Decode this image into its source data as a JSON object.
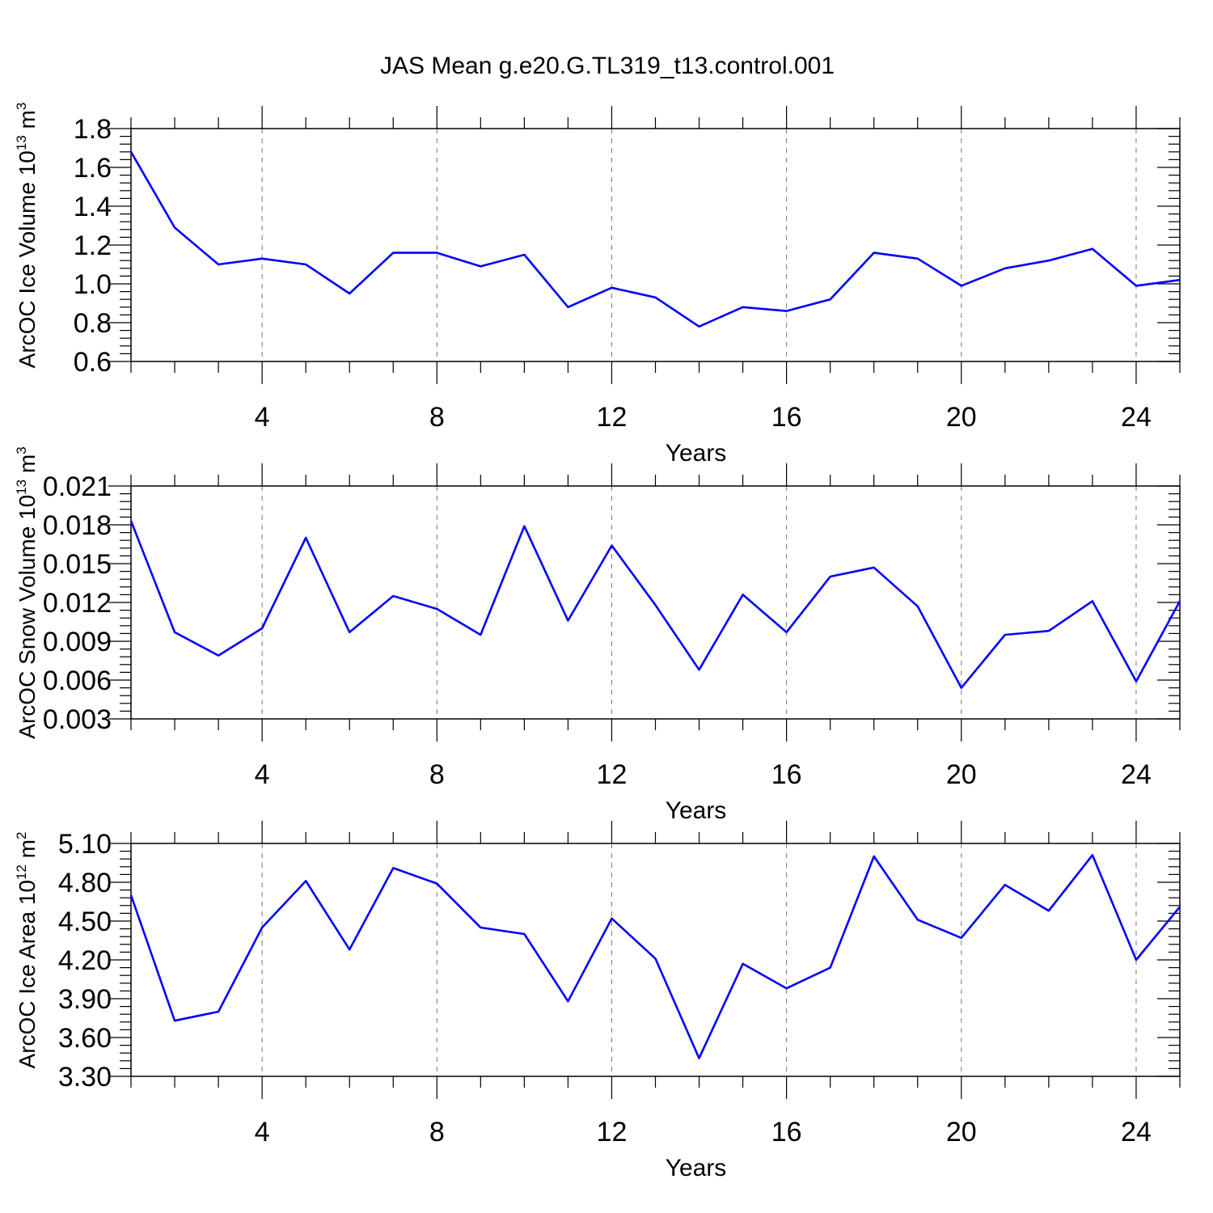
{
  "title": "JAS Mean g.e20.G.TL319_t13.control.001",
  "colors": {
    "series": "#0000ff",
    "grid": "#777777",
    "axes": "#000000"
  },
  "chart_data": [
    {
      "type": "line",
      "xlabel": "Years",
      "ylabel": "ArcOC Ice Volume 10",
      "ylabel_exp": "13",
      "ylabel_unit": "m",
      "ylabel_unit_exp": "3",
      "xlim": [
        1,
        25
      ],
      "ylim": [
        0.6,
        1.8
      ],
      "xticks": [
        4,
        8,
        12,
        16,
        20,
        24
      ],
      "xtick_labels": [
        "4",
        "8",
        "12",
        "16",
        "20",
        "24"
      ],
      "yticks": [
        0.6,
        0.8,
        1.0,
        1.2,
        1.4,
        1.6,
        1.8
      ],
      "ytick_labels": [
        "0.6",
        "0.8",
        "1.0",
        "1.2",
        "1.4",
        "1.6",
        "1.8"
      ],
      "grid_x": true,
      "x": [
        1,
        2,
        3,
        4,
        5,
        6,
        7,
        8,
        9,
        10,
        11,
        12,
        13,
        14,
        15,
        16,
        17,
        18,
        19,
        20,
        21,
        22,
        23,
        24,
        25
      ],
      "values": [
        1.68,
        1.29,
        1.1,
        1.13,
        1.1,
        0.95,
        1.16,
        1.16,
        1.09,
        1.15,
        0.88,
        0.98,
        0.93,
        0.78,
        0.88,
        0.86,
        0.92,
        1.16,
        1.13,
        0.99,
        1.08,
        1.12,
        1.18,
        0.99,
        1.02
      ]
    },
    {
      "type": "line",
      "xlabel": "Years",
      "ylabel": "ArcOC Snow Volume 10",
      "ylabel_exp": "13",
      "ylabel_unit": "m",
      "ylabel_unit_exp": "3",
      "xlim": [
        1,
        25
      ],
      "ylim": [
        0.003,
        0.021
      ],
      "xticks": [
        4,
        8,
        12,
        16,
        20,
        24
      ],
      "xtick_labels": [
        "4",
        "8",
        "12",
        "16",
        "20",
        "24"
      ],
      "yticks": [
        0.003,
        0.006,
        0.009,
        0.012,
        0.015,
        0.018,
        0.021
      ],
      "ytick_labels": [
        "0.003",
        "0.006",
        "0.009",
        "0.012",
        "0.015",
        "0.018",
        "0.021"
      ],
      "grid_x": true,
      "x": [
        1,
        2,
        3,
        4,
        5,
        6,
        7,
        8,
        9,
        10,
        11,
        12,
        13,
        14,
        15,
        16,
        17,
        18,
        19,
        20,
        21,
        22,
        23,
        24,
        25
      ],
      "values": [
        0.0183,
        0.0097,
        0.0079,
        0.01,
        0.017,
        0.0097,
        0.0125,
        0.0115,
        0.0095,
        0.0179,
        0.0106,
        0.0164,
        0.0118,
        0.0068,
        0.0126,
        0.0097,
        0.014,
        0.0147,
        0.0117,
        0.0054,
        0.0095,
        0.0098,
        0.0121,
        0.0059,
        0.0121
      ]
    },
    {
      "type": "line",
      "xlabel": "Years",
      "ylabel": "ArcOC Ice Area 10",
      "ylabel_exp": "12",
      "ylabel_unit": "m",
      "ylabel_unit_exp": "2",
      "xlim": [
        1,
        25
      ],
      "ylim": [
        3.3,
        5.1
      ],
      "xticks": [
        4,
        8,
        12,
        16,
        20,
        24
      ],
      "xtick_labels": [
        "4",
        "8",
        "12",
        "16",
        "20",
        "24"
      ],
      "yticks": [
        3.3,
        3.6,
        3.9,
        4.2,
        4.5,
        4.8,
        5.1
      ],
      "ytick_labels": [
        "3.30",
        "3.60",
        "3.90",
        "4.20",
        "4.50",
        "4.80",
        "5.10"
      ],
      "grid_x": true,
      "x": [
        1,
        2,
        3,
        4,
        5,
        6,
        7,
        8,
        9,
        10,
        11,
        12,
        13,
        14,
        15,
        16,
        17,
        18,
        19,
        20,
        21,
        22,
        23,
        24,
        25
      ],
      "values": [
        4.7,
        3.73,
        3.8,
        4.45,
        4.81,
        4.28,
        4.91,
        4.79,
        4.45,
        4.4,
        3.88,
        4.52,
        4.21,
        3.44,
        4.17,
        3.98,
        4.14,
        5.0,
        4.51,
        4.37,
        4.78,
        4.58,
        5.01,
        4.2,
        4.61
      ]
    }
  ]
}
